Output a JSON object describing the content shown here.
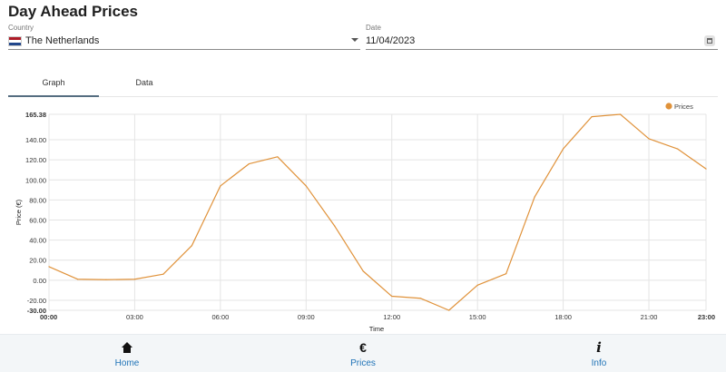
{
  "title": "Day Ahead Prices",
  "country": {
    "label": "Country",
    "value": "The Netherlands",
    "flag_colors": [
      "#ae1c28",
      "#ffffff",
      "#21468b"
    ]
  },
  "date": {
    "label": "Date",
    "value": "11/04/2023"
  },
  "tabs": [
    {
      "label": "Graph",
      "active": true
    },
    {
      "label": "Data",
      "active": false
    }
  ],
  "chart_data": {
    "type": "line",
    "xlabel": "Time",
    "ylabel": "Price (€)",
    "legend": {
      "label": "Prices",
      "placement": "top-right"
    },
    "grid": true,
    "line_color": "#e0923a",
    "ylim": [
      -30.0,
      165.38
    ],
    "y_ticks": [
      "165.38",
      "140.00",
      "120.00",
      "100.00",
      "80.00",
      "60.00",
      "40.00",
      "20.00",
      "0.00",
      "-20.00",
      "-30.00"
    ],
    "x_ticks": [
      "00:00",
      "03:00",
      "06:00",
      "09:00",
      "12:00",
      "15:00",
      "18:00",
      "21:00",
      "23:00"
    ],
    "x": [
      "00:00",
      "01:00",
      "02:00",
      "03:00",
      "04:00",
      "05:00",
      "06:00",
      "07:00",
      "08:00",
      "09:00",
      "10:00",
      "11:00",
      "12:00",
      "13:00",
      "14:00",
      "15:00",
      "16:00",
      "17:00",
      "18:00",
      "19:00",
      "20:00",
      "21:00",
      "22:00",
      "23:00"
    ],
    "series": [
      {
        "name": "Prices",
        "values": [
          13.5,
          1.0,
          0.5,
          1.0,
          6.0,
          34.5,
          94.0,
          116.0,
          123.0,
          94.0,
          54.0,
          9.0,
          -16.0,
          -18.0,
          -30.0,
          -5.0,
          6.5,
          83.0,
          131.0,
          163.0,
          165.38,
          141.0,
          131.0,
          111.0
        ]
      }
    ]
  },
  "nav": [
    {
      "label": "Home",
      "icon": "home-icon"
    },
    {
      "label": "Prices",
      "icon": "euro-icon"
    },
    {
      "label": "Info",
      "icon": "info-icon"
    }
  ]
}
